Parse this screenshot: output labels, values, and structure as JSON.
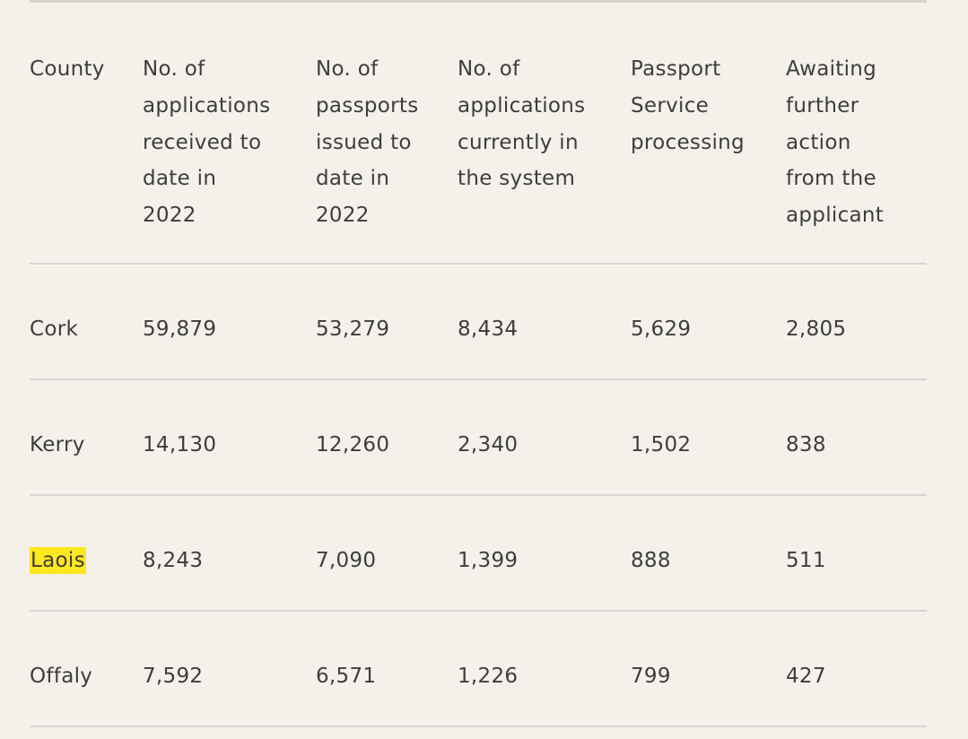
{
  "headers": [
    [
      "County"
    ],
    [
      "No. of",
      "applications",
      "received to",
      "date in",
      "2022"
    ],
    [
      "No. of",
      "passports",
      "issued to",
      "date in",
      "2022"
    ],
    [
      "No. of",
      "applications",
      "currently in",
      "the system"
    ],
    [
      "Passport",
      "Service",
      "processing"
    ],
    [
      "Awaiting",
      "further",
      "action",
      "from the",
      "applicant"
    ]
  ],
  "rows": [
    [
      "Cork",
      "59,879",
      "53,279",
      "8,434",
      "5,629",
      "2,805"
    ],
    [
      "Kerry",
      "14,130",
      "12,260",
      "2,340",
      "1,502",
      "838"
    ],
    [
      "Laois",
      "8,243",
      "7,090",
      "1,399",
      "888",
      "511"
    ],
    [
      "Offaly",
      "7,592",
      "6,571",
      "1,226",
      "799",
      "427"
    ]
  ],
  "highlight_color": "#fde81e"
}
